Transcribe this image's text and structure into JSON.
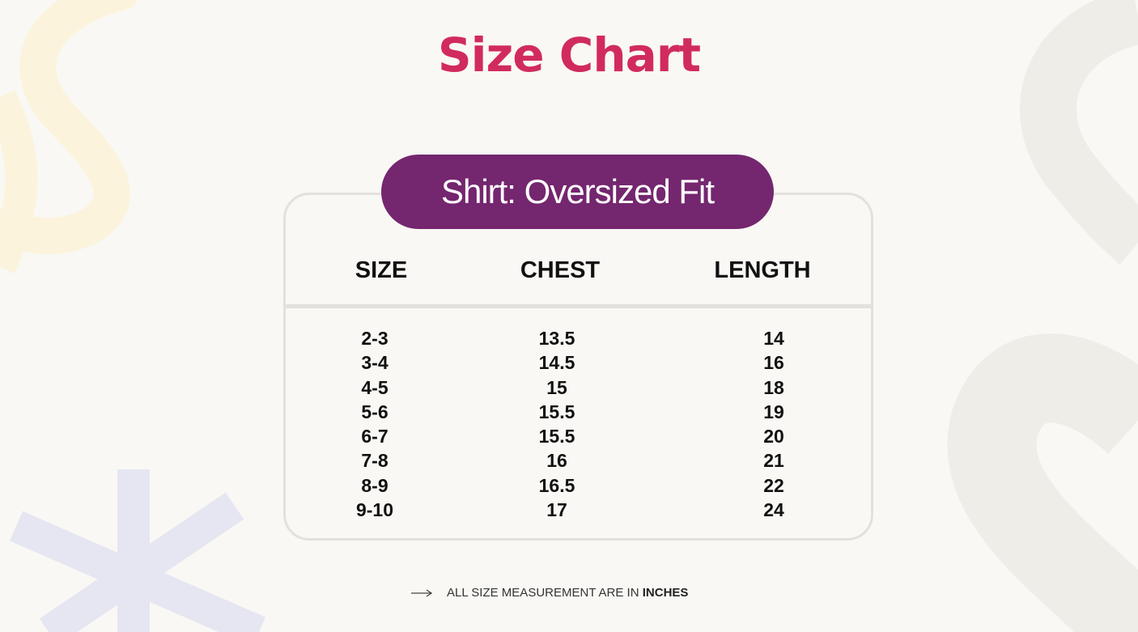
{
  "title": "Size Chart",
  "subtitle": "Shirt: Oversized Fit",
  "colors": {
    "title": "#d12b5e",
    "pill": "#74266f",
    "background": "#f9f8f4"
  },
  "table": {
    "headers": [
      "SIZE",
      "CHEST",
      "LENGTH"
    ],
    "sizes": [
      "2-3",
      "3-4",
      "4-5",
      "5-6",
      "6-7",
      "7-8",
      "8-9",
      "9-10"
    ],
    "chest": [
      "13.5",
      "14.5",
      "15",
      "15.5",
      "15.5",
      "16",
      "16.5",
      "17"
    ],
    "length": [
      "14",
      "16",
      "18",
      "19",
      "20",
      "21",
      "22",
      "24"
    ]
  },
  "note": {
    "icon": "arrow-right-icon",
    "text": "ALL SIZE MEASUREMENT ARE IN",
    "emphasis": "INCHES"
  }
}
